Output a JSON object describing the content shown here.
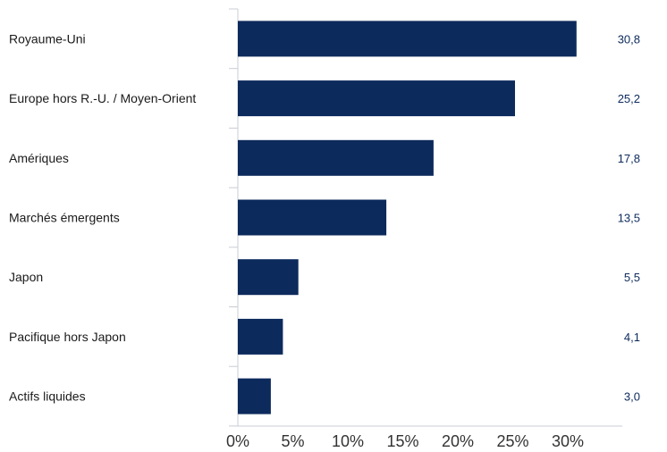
{
  "chart_data": {
    "type": "bar",
    "orientation": "horizontal",
    "categories": [
      "Royaume-Uni",
      "Europe hors R.-U. / Moyen-Orient",
      "Amériques",
      "Marchés émergents",
      "Japon",
      "Pacifique hors Japon",
      "Actifs liquides"
    ],
    "values": [
      30.8,
      25.2,
      17.8,
      13.5,
      5.5,
      4.1,
      3.0
    ],
    "value_labels": [
      "30,8",
      "25,2",
      "17,8",
      "13,5",
      "5,5",
      "4,1",
      "3,0"
    ],
    "x_ticks": [
      "0%",
      "5%",
      "10%",
      "15%",
      "20%",
      "25%",
      "30%"
    ],
    "xlim": [
      0,
      35
    ],
    "title": "",
    "xlabel": "",
    "ylabel": "",
    "grid": false,
    "colors": {
      "bar": "#0d2a5c",
      "value_label": "#0d2a5c",
      "axis": "#c9ccd4"
    }
  }
}
